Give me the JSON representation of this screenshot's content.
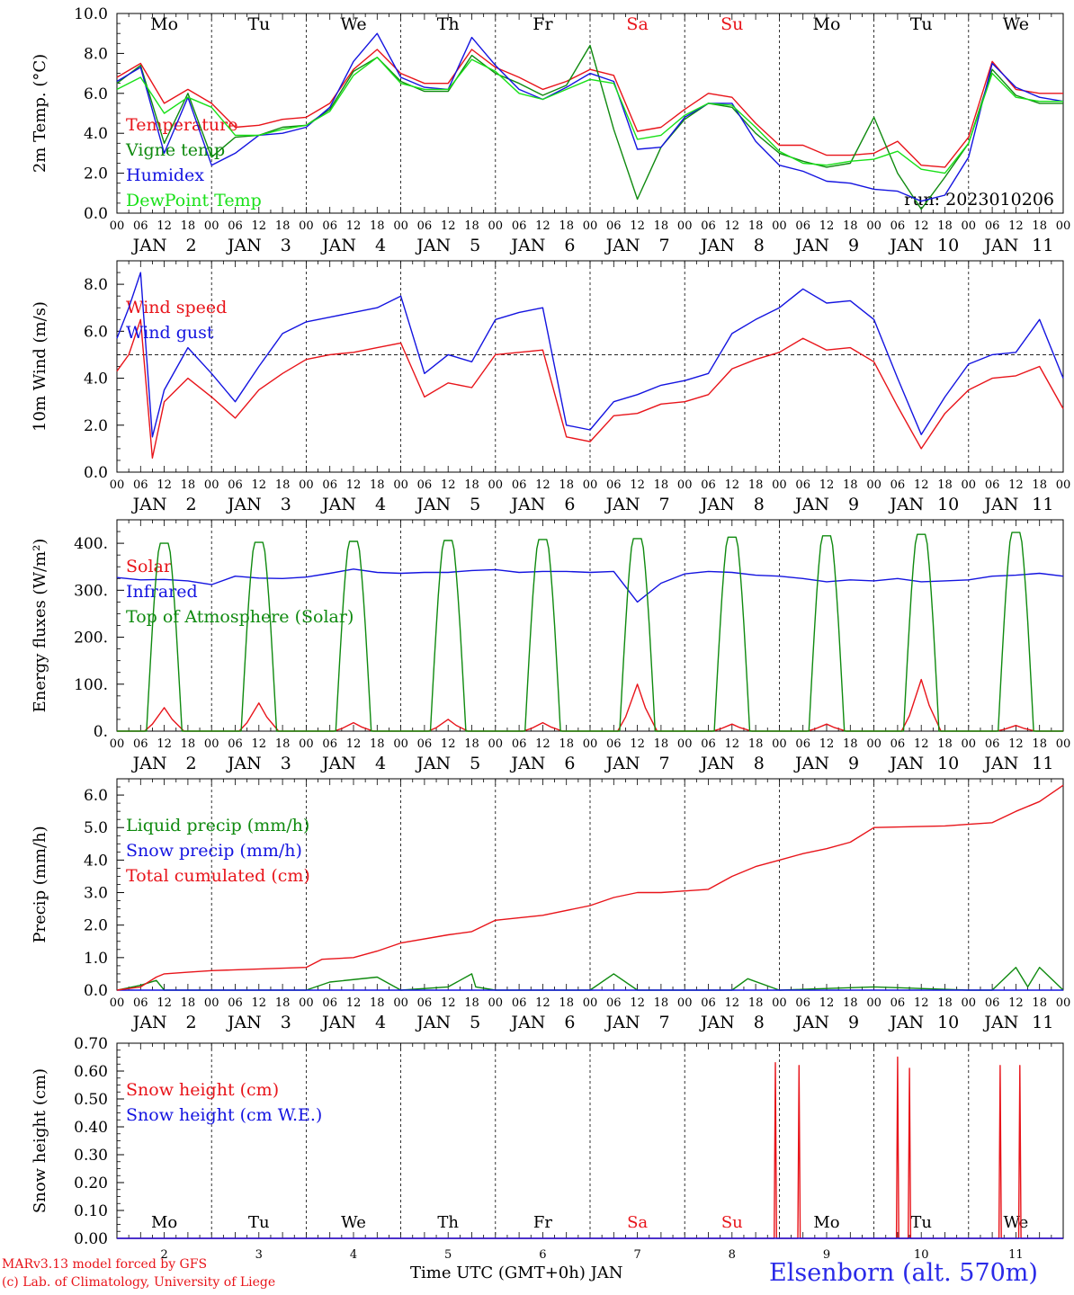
{
  "chart_data": {
    "type": "line",
    "run_label": "run: 2023010206",
    "day_names": [
      "Mo",
      "Tu",
      "We",
      "Th",
      "Fr",
      "Sa",
      "Su",
      "Mo",
      "Tu",
      "We"
    ],
    "weekend_day_index": [
      5,
      6
    ],
    "hour_ticks": [
      "00",
      "06",
      "12",
      "18"
    ],
    "month_label": "JAN",
    "dates": [
      "2",
      "3",
      "4",
      "5",
      "6",
      "7",
      "8",
      "9",
      "10",
      "11"
    ],
    "panels": [
      {
        "key": "temp",
        "ylabel": "2m Temp. (°C)",
        "ylim": [
          0,
          10
        ],
        "yticks": [
          "0.0",
          "2.0",
          "4.0",
          "6.0",
          "8.0",
          "10.0"
        ],
        "series": [
          {
            "name": "Temperature",
            "color": "#e8141a",
            "x": [
              0,
              6,
              12,
              18,
              24,
              30,
              36,
              42,
              48,
              54,
              60,
              66,
              72,
              78,
              84,
              90,
              96,
              102,
              108,
              114,
              120,
              126,
              132,
              138,
              144,
              150,
              156,
              162,
              168,
              174,
              180,
              186,
              192,
              198,
              204,
              210,
              216,
              222,
              228,
              234,
              240
            ],
            "values": [
              6.8,
              7.5,
              5.5,
              6.2,
              5.5,
              4.3,
              4.4,
              4.7,
              4.8,
              5.5,
              7.2,
              8.2,
              7.0,
              6.5,
              6.5,
              8.2,
              7.3,
              6.8,
              6.2,
              6.6,
              7.2,
              6.9,
              4.1,
              4.3,
              5.2,
              6.0,
              5.8,
              4.5,
              3.4,
              3.4,
              2.9,
              2.9,
              3.0,
              3.6,
              2.4,
              2.3,
              3.8,
              7.6,
              6.2,
              6.0,
              6.0
            ]
          },
          {
            "name": "Vigne temp",
            "color": "#0f8a0f",
            "x": [
              0,
              6,
              12,
              18,
              24,
              30,
              36,
              42,
              48,
              54,
              60,
              66,
              72,
              78,
              84,
              90,
              96,
              102,
              108,
              114,
              120,
              126,
              132,
              138,
              144,
              150,
              156,
              162,
              168,
              174,
              180,
              186,
              192,
              198,
              204,
              210,
              216,
              222,
              228,
              234,
              240
            ],
            "values": [
              6.5,
              7.4,
              3.5,
              6.0,
              2.8,
              3.8,
              3.9,
              4.3,
              4.4,
              5.2,
              7.1,
              7.8,
              6.6,
              6.1,
              6.1,
              7.9,
              7.0,
              6.5,
              5.9,
              6.4,
              8.4,
              4.2,
              0.7,
              3.3,
              4.7,
              5.5,
              5.3,
              4.0,
              3.0,
              2.6,
              2.3,
              2.5,
              4.8,
              2.0,
              0.2,
              1.8,
              3.5,
              7.2,
              5.9,
              5.5,
              5.5
            ]
          },
          {
            "name": "Humidex",
            "color": "#1414e0",
            "x": [
              0,
              6,
              12,
              18,
              24,
              30,
              36,
              42,
              48,
              54,
              60,
              66,
              72,
              78,
              84,
              90,
              96,
              102,
              108,
              114,
              120,
              126,
              132,
              138,
              144,
              150,
              156,
              162,
              168,
              174,
              180,
              186,
              192,
              198,
              204,
              210,
              216,
              222,
              228,
              234,
              240
            ],
            "values": [
              6.6,
              7.3,
              3.0,
              5.8,
              2.4,
              3.0,
              3.9,
              4.0,
              4.3,
              5.3,
              7.6,
              9.0,
              6.8,
              6.3,
              6.2,
              8.8,
              7.4,
              6.2,
              5.7,
              6.3,
              7.0,
              6.6,
              3.2,
              3.3,
              4.8,
              5.5,
              5.5,
              3.6,
              2.4,
              2.1,
              1.6,
              1.5,
              1.2,
              1.1,
              0.6,
              0.9,
              2.8,
              7.5,
              6.3,
              5.8,
              5.6
            ]
          },
          {
            "name": "DewPoint Temp",
            "color": "#18e018",
            "x": [
              0,
              6,
              12,
              18,
              24,
              30,
              36,
              42,
              48,
              54,
              60,
              66,
              72,
              78,
              84,
              90,
              96,
              102,
              108,
              114,
              120,
              126,
              132,
              138,
              144,
              150,
              156,
              162,
              168,
              174,
              180,
              186,
              192,
              198,
              204,
              210,
              216,
              222,
              228,
              234,
              240
            ],
            "values": [
              6.2,
              6.8,
              5.0,
              5.8,
              5.3,
              3.9,
              3.9,
              4.2,
              4.4,
              5.1,
              6.9,
              7.8,
              6.5,
              6.2,
              6.2,
              7.7,
              7.1,
              6.0,
              5.7,
              6.2,
              6.7,
              6.5,
              3.7,
              3.9,
              4.9,
              5.5,
              5.4,
              4.3,
              3.1,
              2.5,
              2.4,
              2.6,
              2.7,
              3.1,
              2.2,
              2.0,
              3.5,
              7.0,
              5.8,
              5.6,
              5.6
            ]
          }
        ]
      },
      {
        "key": "wind",
        "ylabel": "10m Wind (m/s)",
        "ylim": [
          0,
          9
        ],
        "yticks": [
          "0.0",
          "2.0",
          "4.0",
          "6.0",
          "8.0"
        ],
        "ref_line": 5.0,
        "series": [
          {
            "name": "Wind speed",
            "color": "#e8141a",
            "x": [
              0,
              3,
              6,
              9,
              12,
              18,
              24,
              30,
              36,
              42,
              48,
              54,
              60,
              66,
              72,
              78,
              84,
              90,
              96,
              102,
              108,
              114,
              120,
              126,
              132,
              138,
              144,
              150,
              156,
              162,
              168,
              174,
              180,
              186,
              192,
              198,
              204,
              210,
              216,
              222,
              228,
              234,
              240
            ],
            "values": [
              4.3,
              5.0,
              6.5,
              0.6,
              3.0,
              4.0,
              3.2,
              2.3,
              3.5,
              4.2,
              4.8,
              5.0,
              5.1,
              5.3,
              5.5,
              3.2,
              3.8,
              3.6,
              5.0,
              5.1,
              5.2,
              1.5,
              1.3,
              2.4,
              2.5,
              2.9,
              3.0,
              3.3,
              4.4,
              4.8,
              5.1,
              5.7,
              5.2,
              5.3,
              4.7,
              2.8,
              1.0,
              2.5,
              3.5,
              4.0,
              4.1,
              4.5,
              2.7
            ]
          },
          {
            "name": "Wind gust",
            "color": "#1414e0",
            "x": [
              0,
              3,
              6,
              9,
              12,
              18,
              24,
              30,
              36,
              42,
              48,
              54,
              60,
              66,
              72,
              78,
              84,
              90,
              96,
              102,
              108,
              114,
              120,
              126,
              132,
              138,
              144,
              150,
              156,
              162,
              168,
              174,
              180,
              186,
              192,
              198,
              204,
              210,
              216,
              222,
              228,
              234,
              240
            ],
            "values": [
              5.7,
              7.0,
              8.5,
              1.5,
              3.5,
              5.3,
              4.2,
              3.0,
              4.5,
              5.9,
              6.4,
              6.6,
              6.8,
              7.0,
              7.5,
              4.2,
              5.0,
              4.7,
              6.5,
              6.8,
              7.0,
              2.0,
              1.8,
              3.0,
              3.3,
              3.7,
              3.9,
              4.2,
              5.9,
              6.5,
              7.0,
              7.8,
              7.2,
              7.3,
              6.5,
              4.0,
              1.6,
              3.2,
              4.6,
              5.0,
              5.1,
              6.5,
              4.0
            ]
          }
        ]
      },
      {
        "key": "flux",
        "ylabel": "Energy fluxes (W/m²)",
        "ylim": [
          0,
          450
        ],
        "yticks": [
          "0.",
          "100.",
          "200.",
          "300.",
          "400."
        ],
        "series": [
          {
            "name": "Solar",
            "color": "#e8141a",
            "solar_peaks": [
              50,
              60,
              18,
              25,
              18,
              100,
              15,
              15,
              110,
              12
            ]
          },
          {
            "name": "Infrared",
            "color": "#1414e0",
            "x": [
              0,
              6,
              12,
              18,
              24,
              30,
              36,
              42,
              48,
              54,
              60,
              66,
              72,
              78,
              84,
              90,
              96,
              102,
              108,
              114,
              120,
              126,
              132,
              138,
              144,
              150,
              156,
              162,
              168,
              174,
              180,
              186,
              192,
              198,
              204,
              210,
              216,
              222,
              228,
              234,
              240
            ],
            "values": [
              327,
              322,
              323,
              320,
              312,
              330,
              326,
              325,
              328,
              336,
              345,
              338,
              336,
              338,
              338,
              342,
              344,
              338,
              340,
              340,
              338,
              340,
              275,
              315,
              335,
              340,
              338,
              332,
              330,
              325,
              318,
              322,
              320,
              325,
              318,
              320,
              322,
              330,
              332,
              336,
              330
            ]
          },
          {
            "name": "Top of Atmosphere (Solar)",
            "color": "#0f8a0f",
            "toa_peaks": [
              400,
              402,
              404,
              406,
              408,
              410,
              413,
              416,
              419,
              423
            ]
          }
        ]
      },
      {
        "key": "precip",
        "ylabel": "Precip (mm/h)",
        "ylim": [
          0,
          6.5
        ],
        "yticks": [
          "0.0",
          "1.0",
          "2.0",
          "3.0",
          "4.0",
          "5.0",
          "6.0"
        ],
        "series": [
          {
            "name": "Liquid precip (mm/h)",
            "color": "#0f8a0f",
            "x": [
              0,
              6,
              10,
              12,
              24,
              48,
              54,
              66,
              72,
              84,
              90,
              91,
              96,
              120,
              126,
              132,
              144,
              156,
              160,
              168,
              192,
              216,
              222,
              228,
              231,
              234,
              240
            ],
            "values": [
              0.0,
              0.15,
              0.3,
              0.0,
              0.0,
              0.0,
              0.25,
              0.4,
              0.0,
              0.1,
              0.5,
              0.1,
              0.0,
              0.0,
              0.5,
              0.0,
              0.0,
              0.0,
              0.35,
              0.0,
              0.1,
              0.0,
              0.0,
              0.7,
              0.1,
              0.7,
              0.0
            ]
          },
          {
            "name": "Snow precip (mm/h)",
            "color": "#1414e0",
            "x": [
              0,
              240
            ],
            "values": [
              0.0,
              0.0
            ]
          },
          {
            "name": "Total cumulated (cm)",
            "color": "#e8141a",
            "x": [
              0,
              6,
              10,
              12,
              18,
              24,
              48,
              52,
              60,
              66,
              72,
              84,
              90,
              96,
              108,
              120,
              126,
              132,
              138,
              150,
              156,
              162,
              168,
              174,
              180,
              186,
              192,
              210,
              216,
              222,
              228,
              234,
              240
            ],
            "values": [
              0.0,
              0.1,
              0.4,
              0.5,
              0.55,
              0.6,
              0.7,
              0.95,
              1.0,
              1.2,
              1.45,
              1.7,
              1.8,
              2.15,
              2.3,
              2.6,
              2.85,
              3.0,
              3.0,
              3.1,
              3.5,
              3.8,
              4.0,
              4.2,
              4.35,
              4.55,
              5.0,
              5.05,
              5.1,
              5.15,
              5.5,
              5.8,
              6.3
            ]
          }
        ]
      },
      {
        "key": "snow",
        "ylabel": "Snow height (cm)",
        "ylim": [
          0,
          0.7
        ],
        "yticks": [
          "0.00",
          "0.10",
          "0.20",
          "0.30",
          "0.40",
          "0.50",
          "0.60",
          "0.70"
        ],
        "series": [
          {
            "name": "Snow height (cm)",
            "color": "#e8141a",
            "spikes_x": [
              167,
              173,
              198,
              201,
              224,
              229
            ],
            "spikes_v": [
              0.63,
              0.62,
              0.65,
              0.61,
              0.62,
              0.62
            ]
          },
          {
            "name": "Snow height (cm W.E.)",
            "color": "#1414e0",
            "x": [
              0,
              240
            ],
            "values": [
              0.0,
              0.0
            ]
          }
        ]
      }
    ]
  },
  "xaxis_title": "Time UTC (GMT+0h) JAN",
  "footer": {
    "model": "MARv3.13 model forced by GFS",
    "copyright": "(c) Lab. of Climatology, University of Liege",
    "station": "Elsenborn (alt. 570m)"
  }
}
